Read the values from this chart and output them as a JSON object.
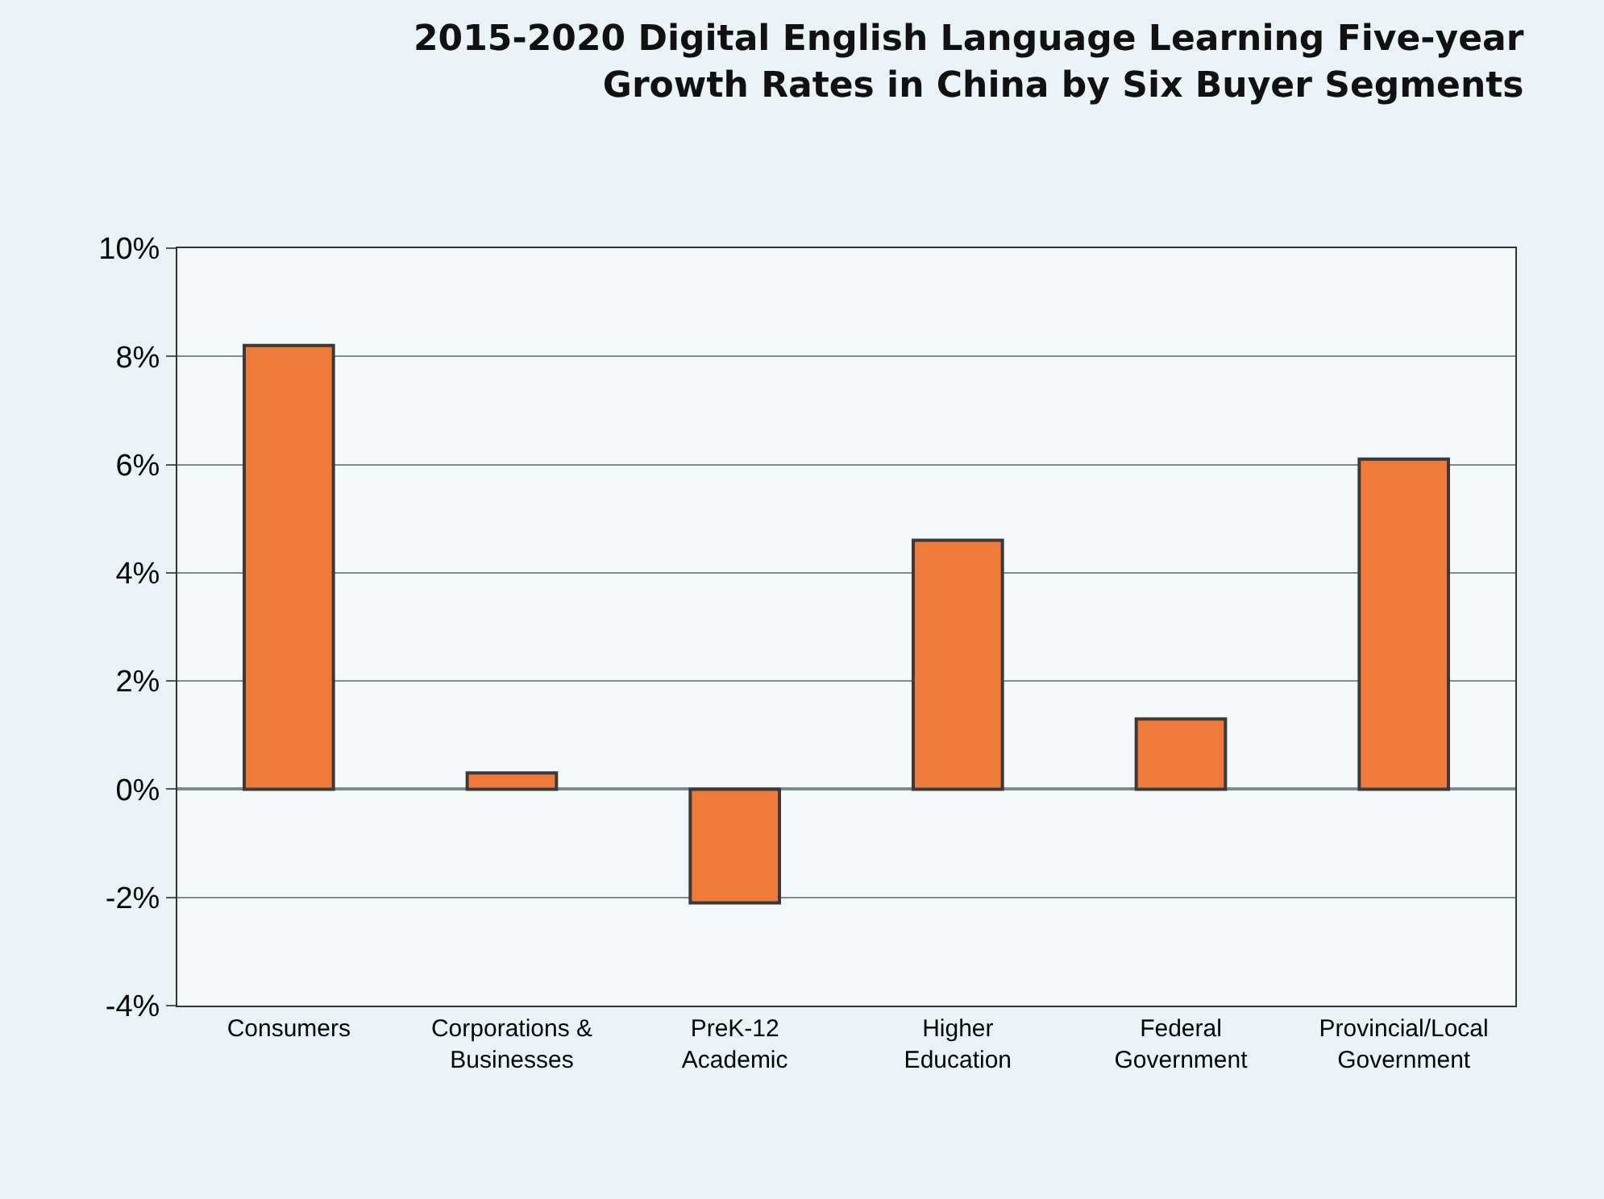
{
  "chart_data": {
    "type": "bar",
    "title": "2015-2020 Digital English Language Learning Five-year\nGrowth Rates in China by Six Buyer Segments",
    "categories": [
      "Consumers",
      "Corporations &\nBusinesses",
      "PreK-12\nAcademic",
      "Higher\nEducation",
      "Federal\nGovernment",
      "Provincial/Local\nGovernment"
    ],
    "values": [
      8.2,
      0.3,
      -2.1,
      4.6,
      1.3,
      6.1
    ],
    "color": "#f07a3a",
    "ylim": [
      -4,
      10
    ],
    "yticks": [
      {
        "value": -4,
        "label": "-4%"
      },
      {
        "value": -2,
        "label": "-2%"
      },
      {
        "value": 0,
        "label": "0%"
      },
      {
        "value": 2,
        "label": "2%"
      },
      {
        "value": 4,
        "label": "4%"
      },
      {
        "value": 6,
        "label": "6%"
      },
      {
        "value": 8,
        "label": "8%"
      },
      {
        "value": 10,
        "label": "10%"
      }
    ],
    "grid": "y"
  }
}
